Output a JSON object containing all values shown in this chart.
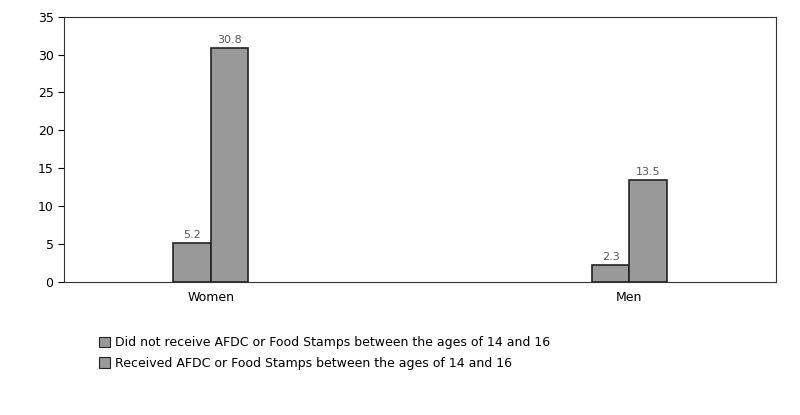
{
  "groups": [
    "Women",
    "Men"
  ],
  "non_recipients": [
    5.2,
    2.3
  ],
  "recipients": [
    30.8,
    13.5
  ],
  "bar_color": "#999999",
  "bar_width": 0.18,
  "group_centers": [
    1,
    3
  ],
  "bar_gap": 0.0,
  "ylim": [
    0,
    35
  ],
  "yticks": [
    0,
    5,
    10,
    15,
    20,
    25,
    30,
    35
  ],
  "legend_label_non": "Did not receive AFDC or Food Stamps between the ages of 14 and 16",
  "legend_label_rec": "Received AFDC or Food Stamps between the ages of 14 and 16",
  "label_fontsize": 8,
  "tick_fontsize": 9,
  "legend_fontsize": 9,
  "background_color": "#ffffff",
  "bar_edge_color": "#222222",
  "text_color": "#555555",
  "xlim": [
    0.3,
    3.7
  ]
}
